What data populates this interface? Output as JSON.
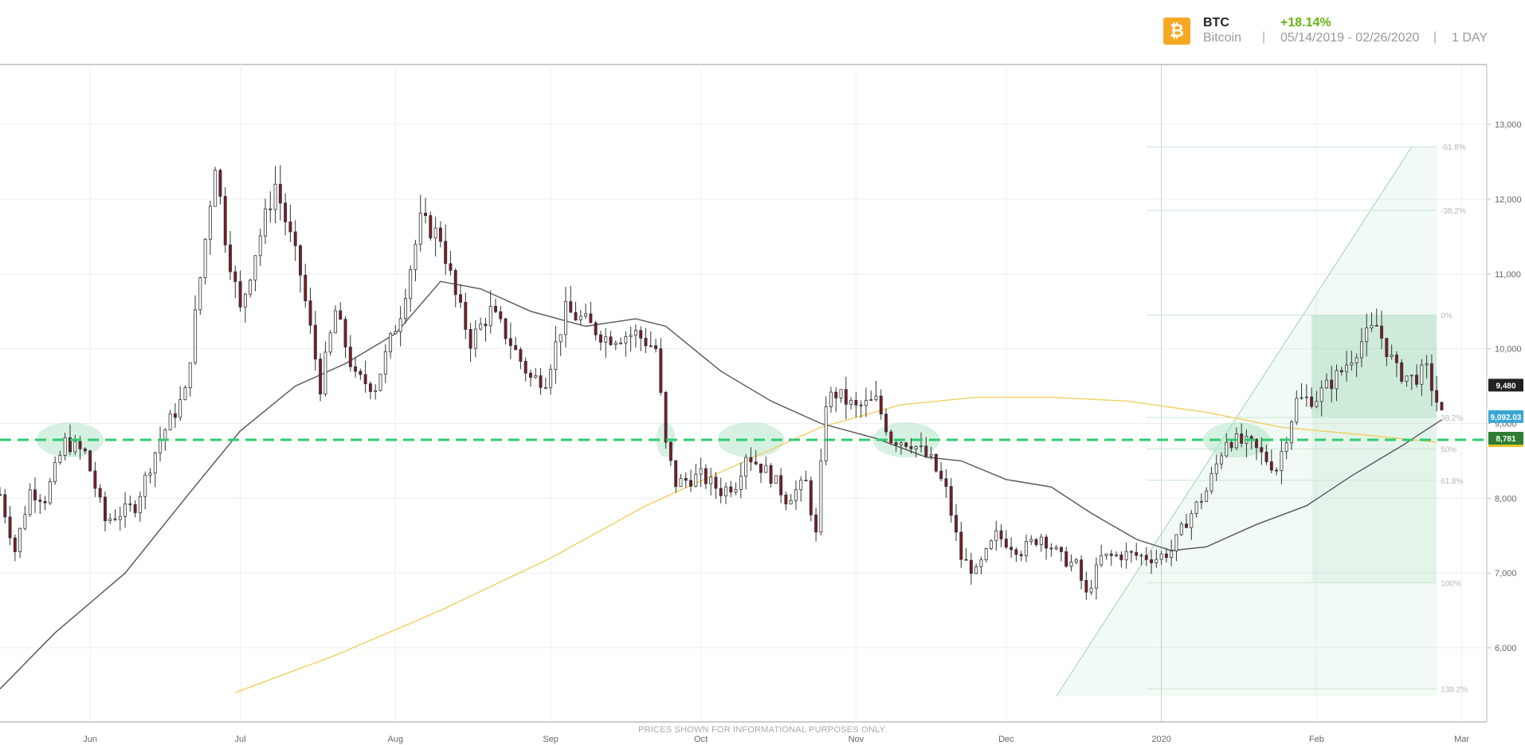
{
  "header": {
    "symbol": "BTC",
    "name": "Bitcoin",
    "change": "+18.14%",
    "date_range": "05/14/2019 - 02/26/2020",
    "interval": "1 DAY",
    "separator": "|",
    "coin_icon": "bitcoin-icon",
    "coin_glyph": "₿"
  },
  "footer": {
    "disclaimer": "PRICES SHOWN FOR INFORMATIONAL PURPOSES ONLY."
  },
  "colors": {
    "coin": "#f7a823",
    "change": "#67b312",
    "candle_up": "#2e7d32",
    "candle_down": "#7a1c28",
    "sma_fast": "#555555",
    "sma_slow": "#f0d060",
    "support_line": "#2ecc71",
    "fib_fill": "#6cc48f",
    "label_current": "#3aa6d6",
    "label_support": "#2e7d32"
  },
  "chart_data": {
    "type": "candlestick",
    "x_tick_labels": [
      "Jun",
      "Jul",
      "Aug",
      "Sep",
      "Oct",
      "Nov",
      "Dec",
      "2020",
      "Feb",
      "Mar"
    ],
    "x_tick_dates": [
      "2019-06-01",
      "2019-07-01",
      "2019-08-01",
      "2019-09-01",
      "2019-10-01",
      "2019-11-01",
      "2019-12-01",
      "2020-01-01",
      "2020-02-01",
      "2020-03-01"
    ],
    "y_ticks": [
      6000,
      7000,
      8000,
      9000,
      10000,
      11000,
      12000,
      13000
    ],
    "y_tick_labels": [
      "6,000",
      "7,000",
      "8,000",
      "9,000",
      "10,000",
      "11,000",
      "12,000",
      "13,000"
    ],
    "ylim": [
      5350,
      13800
    ],
    "x_range": [
      "2019-05-14",
      "2020-03-06"
    ],
    "grid": true,
    "price_keypoints": [
      [
        "2019-05-14",
        8050
      ],
      [
        "2019-05-17",
        7300
      ],
      [
        "2019-05-20",
        8100
      ],
      [
        "2019-05-23",
        8000
      ],
      [
        "2019-05-27",
        8750
      ],
      [
        "2019-05-31",
        8600
      ],
      [
        "2019-06-04",
        7700
      ],
      [
        "2019-06-10",
        7900
      ],
      [
        "2019-06-15",
        8800
      ],
      [
        "2019-06-20",
        9400
      ],
      [
        "2019-06-26",
        12500
      ],
      [
        "2019-06-28",
        11500
      ],
      [
        "2019-07-01",
        10500
      ],
      [
        "2019-07-04",
        11300
      ],
      [
        "2019-07-08",
        12200
      ],
      [
        "2019-07-13",
        11000
      ],
      [
        "2019-07-17",
        9500
      ],
      [
        "2019-07-20",
        10500
      ],
      [
        "2019-07-24",
        9600
      ],
      [
        "2019-07-28",
        9500
      ],
      [
        "2019-08-02",
        10500
      ],
      [
        "2019-08-06",
        11700
      ],
      [
        "2019-08-10",
        11500
      ],
      [
        "2019-08-13",
        10700
      ],
      [
        "2019-08-16",
        10100
      ],
      [
        "2019-08-20",
        10500
      ],
      [
        "2019-08-23",
        10200
      ],
      [
        "2019-08-28",
        9600
      ],
      [
        "2019-08-31",
        9600
      ],
      [
        "2019-09-04",
        10500
      ],
      [
        "2019-09-07",
        10400
      ],
      [
        "2019-09-12",
        10150
      ],
      [
        "2019-09-18",
        10200
      ],
      [
        "2019-09-22",
        10000
      ],
      [
        "2019-09-24",
        8700
      ],
      [
        "2019-09-26",
        8200
      ],
      [
        "2019-10-01",
        8300
      ],
      [
        "2019-10-05",
        8100
      ],
      [
        "2019-10-08",
        8200
      ],
      [
        "2019-10-10",
        8600
      ],
      [
        "2019-10-15",
        8300
      ],
      [
        "2019-10-18",
        8000
      ],
      [
        "2019-10-22",
        8200
      ],
      [
        "2019-10-24",
        7500
      ],
      [
        "2019-10-26",
        9300
      ],
      [
        "2019-10-28",
        9400
      ],
      [
        "2019-11-01",
        9200
      ],
      [
        "2019-11-05",
        9300
      ],
      [
        "2019-11-08",
        8800
      ],
      [
        "2019-11-12",
        8750
      ],
      [
        "2019-11-16",
        8500
      ],
      [
        "2019-11-19",
        8100
      ],
      [
        "2019-11-22",
        7200
      ],
      [
        "2019-11-25",
        7000
      ],
      [
        "2019-11-29",
        7500
      ],
      [
        "2019-12-04",
        7300
      ],
      [
        "2019-12-08",
        7500
      ],
      [
        "2019-12-12",
        7200
      ],
      [
        "2019-12-15",
        7100
      ],
      [
        "2019-12-17",
        6700
      ],
      [
        "2019-12-20",
        7200
      ],
      [
        "2019-12-25",
        7250
      ],
      [
        "2019-12-31",
        7200
      ],
      [
        "2020-01-03",
        7300
      ],
      [
        "2020-01-06",
        7700
      ],
      [
        "2020-01-10",
        8100
      ],
      [
        "2020-01-14",
        8800
      ],
      [
        "2020-01-19",
        8700
      ],
      [
        "2020-01-24",
        8400
      ],
      [
        "2020-01-28",
        9300
      ],
      [
        "2020-02-01",
        9350
      ],
      [
        "2020-02-06",
        9700
      ],
      [
        "2020-02-10",
        10100
      ],
      [
        "2020-02-13",
        10300
      ],
      [
        "2020-02-17",
        9700
      ],
      [
        "2020-02-20",
        9600
      ],
      [
        "2020-02-23",
        9700
      ],
      [
        "2020-02-26",
        9100
      ]
    ],
    "sma_fast_points": [
      [
        "2019-05-14",
        5450
      ],
      [
        "2019-05-25",
        6200
      ],
      [
        "2019-06-08",
        7000
      ],
      [
        "2019-06-20",
        8000
      ],
      [
        "2019-07-01",
        8900
      ],
      [
        "2019-07-12",
        9500
      ],
      [
        "2019-07-22",
        9800
      ],
      [
        "2019-08-01",
        10200
      ],
      [
        "2019-08-10",
        10900
      ],
      [
        "2019-08-18",
        10800
      ],
      [
        "2019-08-28",
        10500
      ],
      [
        "2019-09-08",
        10300
      ],
      [
        "2019-09-18",
        10400
      ],
      [
        "2019-09-24",
        10300
      ],
      [
        "2019-10-05",
        9700
      ],
      [
        "2019-10-15",
        9300
      ],
      [
        "2019-10-25",
        9000
      ],
      [
        "2019-11-05",
        8800
      ],
      [
        "2019-11-15",
        8550
      ],
      [
        "2019-11-22",
        8500
      ],
      [
        "2019-12-01",
        8250
      ],
      [
        "2019-12-10",
        8150
      ],
      [
        "2019-12-18",
        7800
      ],
      [
        "2019-12-27",
        7450
      ],
      [
        "2020-01-03",
        7300
      ],
      [
        "2020-01-10",
        7350
      ],
      [
        "2020-01-20",
        7650
      ],
      [
        "2020-01-30",
        7900
      ],
      [
        "2020-02-08",
        8300
      ],
      [
        "2020-02-18",
        8700
      ],
      [
        "2020-02-26",
        9050
      ]
    ],
    "sma_slow_points": [
      [
        "2019-06-30",
        5400
      ],
      [
        "2019-07-20",
        5900
      ],
      [
        "2019-08-10",
        6500
      ],
      [
        "2019-09-01",
        7200
      ],
      [
        "2019-09-20",
        7900
      ],
      [
        "2019-10-10",
        8500
      ],
      [
        "2019-10-25",
        8950
      ],
      [
        "2019-11-10",
        9250
      ],
      [
        "2019-11-25",
        9350
      ],
      [
        "2019-12-10",
        9350
      ],
      [
        "2019-12-25",
        9300
      ],
      [
        "2020-01-10",
        9150
      ],
      [
        "2020-01-25",
        8950
      ],
      [
        "2020-02-10",
        8850
      ],
      [
        "2020-02-25",
        8750
      ]
    ],
    "support_level": 8781,
    "current_price": 9092.03,
    "current_price_label": "9,092.03",
    "support_price_label": "8,781",
    "hidden_price_label": "9,480",
    "fibonacci": {
      "start_date": "2019-12-29",
      "low": 6870,
      "high": 10450,
      "end_date": "2020-02-24",
      "fan_from_date": "2019-12-11",
      "fan_to_date": "2020-02-20",
      "levels": [
        {
          "label": "-61.8%",
          "price": 12700
        },
        {
          "label": "-38.2%",
          "price": 11850
        },
        {
          "label": "0%",
          "price": 10450
        },
        {
          "label": "38.2%",
          "price": 9080
        },
        {
          "label": "50%",
          "price": 8660
        },
        {
          "label": "61.8%",
          "price": 8240
        },
        {
          "label": "100%",
          "price": 6870
        },
        {
          "label": "138.2%",
          "price": 5450
        }
      ]
    },
    "highlight_dates": [
      "2019-05-28",
      "2019-09-24",
      "2019-10-11",
      "2019-11-11",
      "2020-01-16"
    ]
  }
}
